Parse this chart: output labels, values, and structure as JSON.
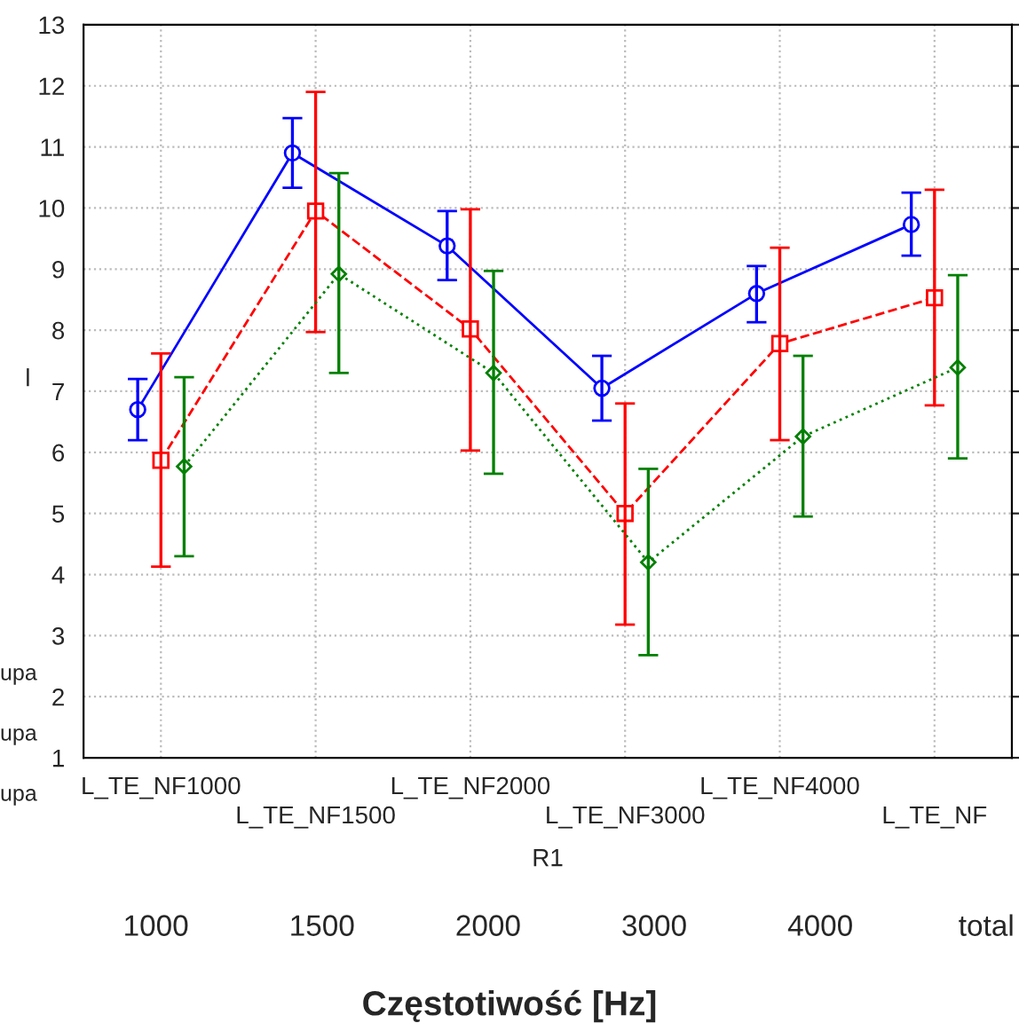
{
  "chart_data": {
    "type": "line",
    "xlabel": "R1",
    "ylabel": "l",
    "categories": [
      "L_TE_NF1000",
      "L_TE_NF1500",
      "L_TE_NF2000",
      "L_TE_NF3000",
      "L_TE_NF4000",
      "L_TE_NF"
    ],
    "series": [
      {
        "color": "#0000ff",
        "marker": "circle",
        "line_style": "solid",
        "values": [
          6.7,
          10.9,
          9.38,
          7.05,
          8.6,
          9.73
        ],
        "errors": [
          [
            6.2,
            7.2
          ],
          [
            10.33,
            11.47
          ],
          [
            8.82,
            9.95
          ],
          [
            6.52,
            7.58
          ],
          [
            8.13,
            9.05
          ],
          [
            9.22,
            10.25
          ]
        ]
      },
      {
        "color": "#ff0000",
        "marker": "square",
        "line_style": "dashed",
        "values": [
          5.87,
          9.95,
          8.02,
          5.0,
          7.78,
          8.53
        ],
        "errors": [
          [
            4.13,
            7.62
          ],
          [
            7.97,
            11.9
          ],
          [
            6.03,
            9.98
          ],
          [
            3.18,
            6.8
          ],
          [
            6.2,
            9.35
          ],
          [
            6.77,
            10.3
          ]
        ]
      },
      {
        "color": "#008000",
        "marker": "diamond",
        "line_style": "dotted",
        "values": [
          5.77,
          8.92,
          7.3,
          4.2,
          6.26,
          7.39
        ],
        "errors": [
          [
            4.3,
            7.23
          ],
          [
            7.3,
            10.57
          ],
          [
            5.65,
            8.97
          ],
          [
            2.68,
            5.73
          ],
          [
            4.95,
            7.58
          ],
          [
            5.9,
            8.9
          ]
        ]
      }
    ],
    "ylim": [
      1,
      13
    ],
    "yticks": [
      1,
      2,
      3,
      4,
      5,
      6,
      7,
      8,
      9,
      10,
      11,
      12,
      13
    ],
    "grid": true,
    "legend": false,
    "annotations": [
      "1000",
      "1500",
      "2000",
      "3000",
      "4000",
      "total",
      "Częstotiwość [Hz]",
      "upa",
      "upa",
      "upa"
    ]
  }
}
